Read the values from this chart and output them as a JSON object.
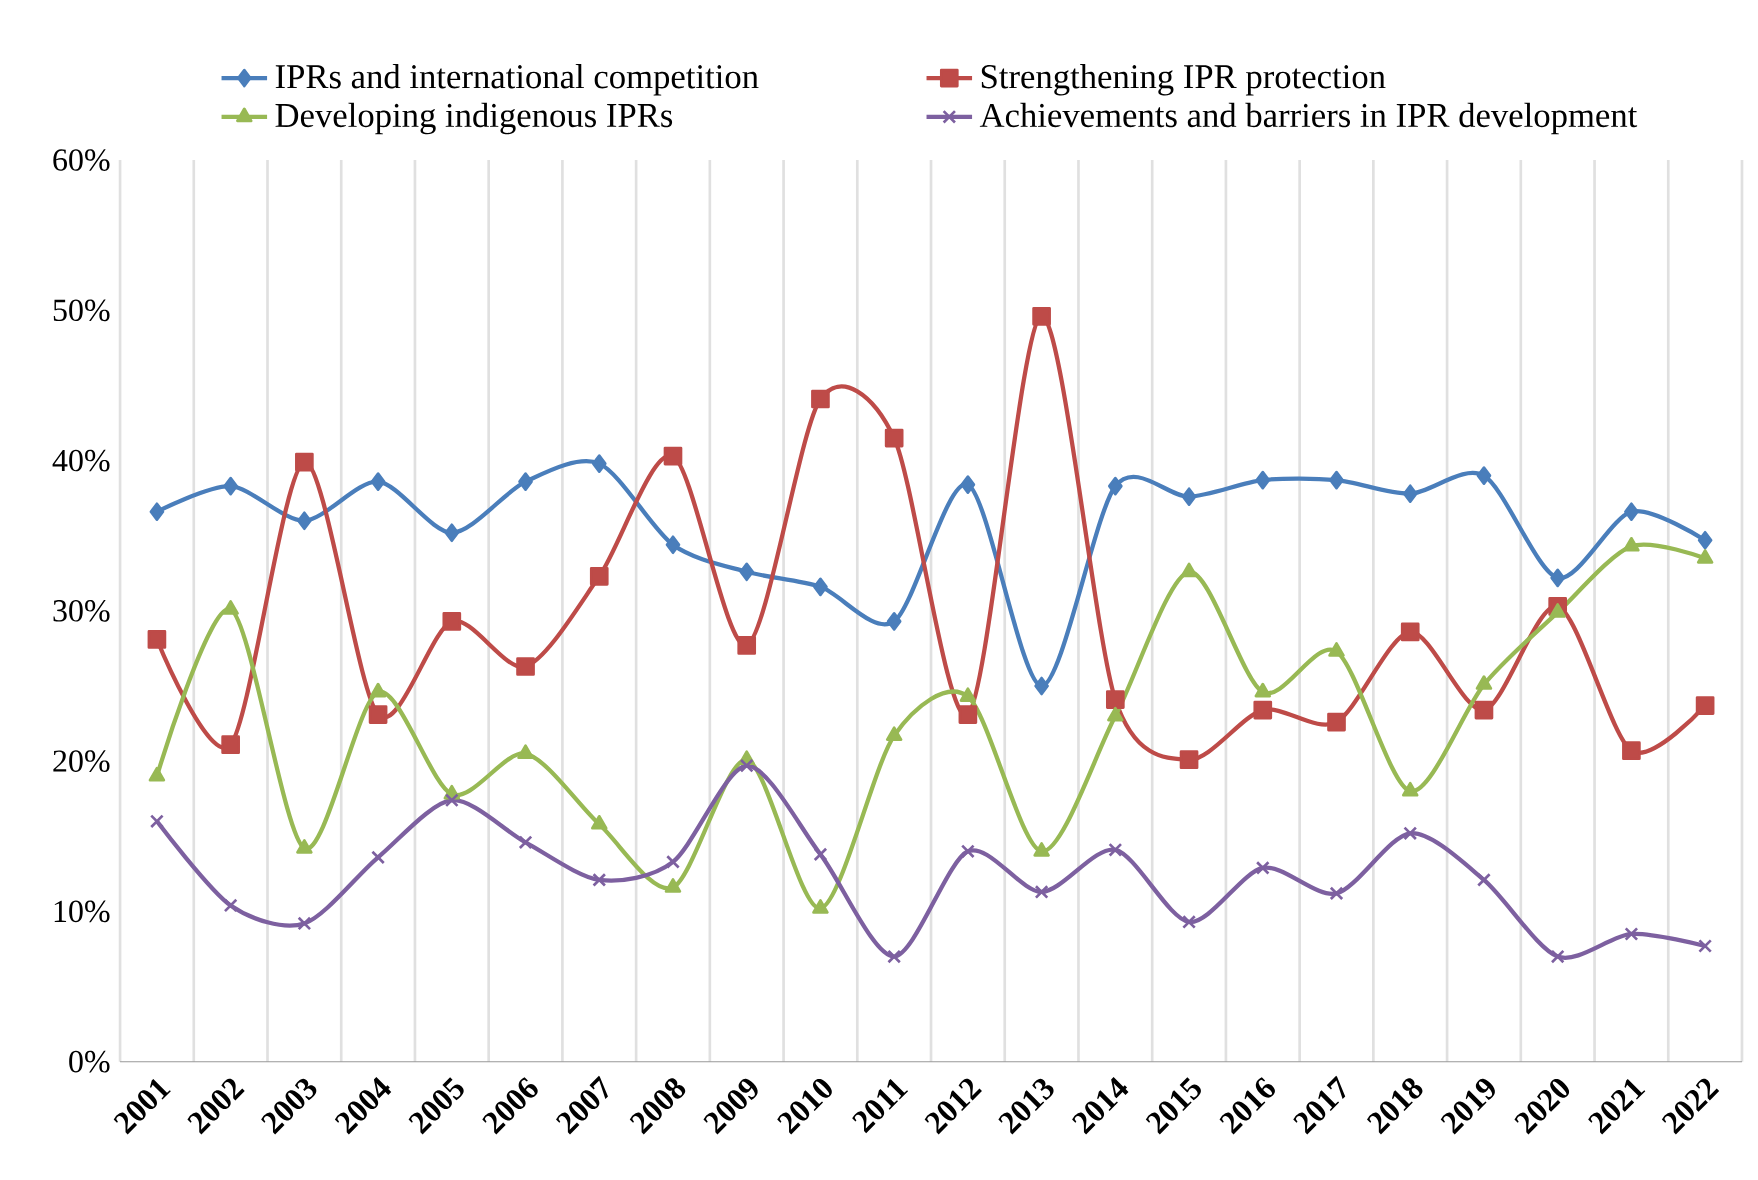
{
  "chart_data": {
    "type": "line",
    "categories": [
      "2001",
      "2002",
      "2003",
      "2004",
      "2005",
      "2006",
      "2007",
      "2008",
      "2009",
      "2010",
      "2011",
      "2012",
      "2013",
      "2014",
      "2015",
      "2016",
      "2017",
      "2018",
      "2019",
      "2020",
      "2021",
      "2022"
    ],
    "series": [
      {
        "name": "IPRs and international competition",
        "color": "#4a7ebb",
        "marker": "diamond",
        "values": [
          36.6,
          38.3,
          36.0,
          38.6,
          35.2,
          38.6,
          39.8,
          34.4,
          32.6,
          31.6,
          29.3,
          38.4,
          25.0,
          38.3,
          37.6,
          38.7,
          38.7,
          37.8,
          39.0,
          32.2,
          36.6,
          34.7
        ]
      },
      {
        "name": "Strengthening IPR protection",
        "color": "#be4b48",
        "marker": "square",
        "values": [
          28.1,
          21.1,
          39.9,
          23.1,
          29.3,
          26.3,
          32.3,
          40.3,
          27.7,
          44.1,
          41.5,
          23.1,
          49.6,
          24.1,
          20.1,
          23.4,
          22.6,
          28.6,
          23.4,
          30.3,
          20.7,
          23.7
        ]
      },
      {
        "name": "Developing indigenous IPRs",
        "color": "#98b954",
        "marker": "triangle",
        "values": [
          19.0,
          30.1,
          14.2,
          24.6,
          17.8,
          20.5,
          15.8,
          11.6,
          20.1,
          10.2,
          21.7,
          24.3,
          14.0,
          23.0,
          32.6,
          24.6,
          27.3,
          18.0,
          25.1,
          29.9,
          34.3,
          33.5
        ]
      },
      {
        "name": "Achievements and barriers in IPR development",
        "color": "#7d60a0",
        "marker": "cross",
        "values": [
          16.0,
          10.4,
          9.2,
          13.6,
          17.4,
          14.6,
          12.1,
          13.3,
          19.7,
          13.8,
          7.0,
          14.0,
          11.3,
          14.1,
          9.3,
          12.9,
          11.2,
          15.2,
          12.1,
          7.0,
          8.5,
          7.7
        ]
      }
    ],
    "ylim": [
      0,
      60
    ],
    "yticks": [
      {
        "value": 0,
        "label": "0%"
      },
      {
        "value": 10,
        "label": "10%"
      },
      {
        "value": 20,
        "label": "20%"
      },
      {
        "value": 30,
        "label": "30%"
      },
      {
        "value": 40,
        "label": "40%"
      },
      {
        "value": 50,
        "label": "50%"
      },
      {
        "value": 60,
        "label": "60%"
      }
    ],
    "grid": "x",
    "legend": "top",
    "line_style": "solid"
  }
}
